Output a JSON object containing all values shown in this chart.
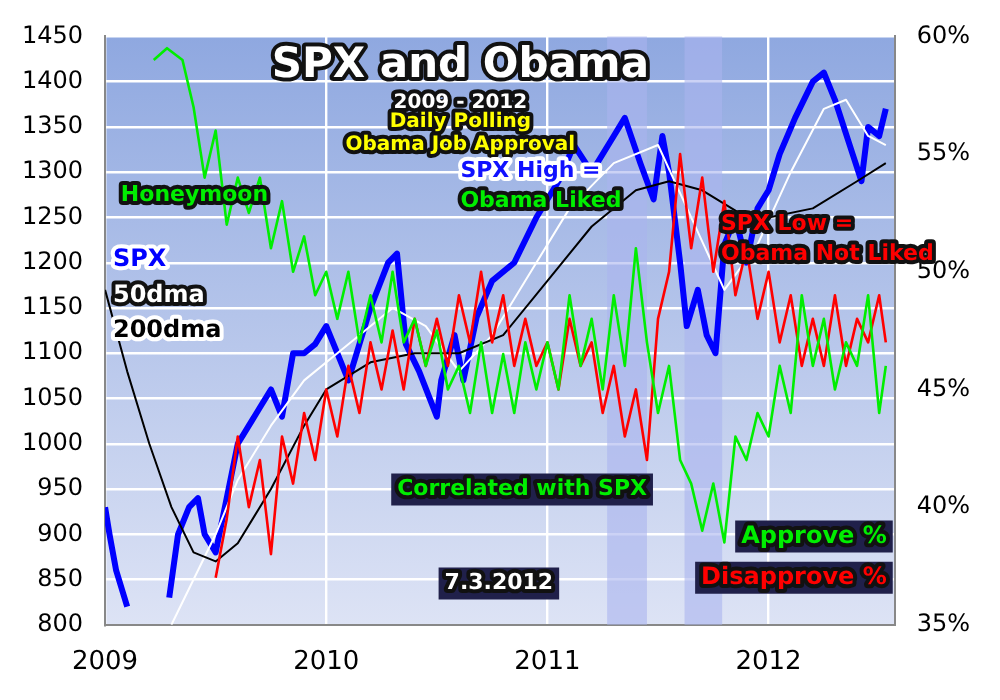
{
  "chart_data": {
    "type": "line",
    "title": "SPX and Obama",
    "subtitle": "2009 - 2012",
    "annotations": [
      "Daily Polling",
      "Obama Job Approval",
      "Honeymoon",
      "SPX High = Obama Liked",
      "SPX Low = Obama Not Liked",
      "Correlated with SPX",
      "7.3.2012"
    ],
    "xlim": [
      2009,
      2012.57
    ],
    "xticks": [
      2009,
      2010,
      2011,
      2012
    ],
    "ylim": [
      800,
      1450
    ],
    "yticks": [
      800,
      850,
      900,
      950,
      1000,
      1050,
      1100,
      1150,
      1200,
      1250,
      1300,
      1350,
      1400,
      1450
    ],
    "y2lim": [
      35,
      60
    ],
    "y2ticks": [
      {
        "value": 35,
        "label": "35%"
      },
      {
        "value": 40,
        "label": "40%"
      },
      {
        "value": 45,
        "label": "45%"
      },
      {
        "value": 50,
        "label": "50%"
      },
      {
        "value": 55,
        "label": "55%"
      },
      {
        "value": 60,
        "label": "60%"
      }
    ],
    "grid": true,
    "legend": false,
    "marker": "none",
    "bands": [
      {
        "axis": "x",
        "from": 2011.27,
        "to": 2011.45,
        "color": "#aab4ee"
      },
      {
        "axis": "x",
        "from": 2011.62,
        "to": 2011.79,
        "color": "#aab4ee"
      }
    ],
    "series": [
      {
        "name": "Approve %",
        "type": "line",
        "axis": "y2",
        "color": "#00ee00",
        "x": [
          2009.22,
          2009.28,
          2009.35,
          2009.4,
          2009.45,
          2009.5,
          2009.55,
          2009.6,
          2009.65,
          2009.7,
          2009.75,
          2009.8,
          2009.85,
          2009.9,
          2009.95,
          2010,
          2010.05,
          2010.1,
          2010.15,
          2010.2,
          2010.25,
          2010.3,
          2010.35,
          2010.4,
          2010.45,
          2010.5,
          2010.55,
          2010.6,
          2010.65,
          2010.7,
          2010.75,
          2010.8,
          2010.85,
          2010.9,
          2010.95,
          2011,
          2011.05,
          2011.1,
          2011.15,
          2011.2,
          2011.25,
          2011.3,
          2011.35,
          2011.4,
          2011.45,
          2011.5,
          2011.55,
          2011.6,
          2011.65,
          2011.7,
          2011.75,
          2011.8,
          2011.85,
          2011.9,
          2011.95,
          2012,
          2012.05,
          2012.1,
          2012.15,
          2012.2,
          2012.25,
          2012.3,
          2012.35,
          2012.4,
          2012.45,
          2012.5,
          2012.53
        ],
        "values": [
          59,
          59.5,
          59,
          57,
          54,
          56,
          52,
          54,
          52.5,
          54,
          51,
          53,
          50,
          51.5,
          49,
          50,
          48,
          50,
          47,
          49,
          47,
          50,
          47,
          48,
          46,
          47.5,
          45,
          46,
          44,
          47,
          44,
          46.5,
          44,
          47,
          45,
          47,
          45,
          49,
          46,
          48,
          45,
          49,
          46,
          51,
          47,
          44,
          46,
          42,
          41,
          39,
          41,
          38.5,
          43,
          42,
          44,
          43,
          46,
          44,
          49,
          46,
          48,
          45,
          47,
          46,
          49,
          44,
          46
        ]
      },
      {
        "name": "Disapprove %",
        "type": "line",
        "axis": "y2",
        "color": "#ff0000",
        "x": [
          2009.5,
          2009.55,
          2009.6,
          2009.65,
          2009.7,
          2009.75,
          2009.8,
          2009.85,
          2009.9,
          2009.95,
          2010,
          2010.05,
          2010.1,
          2010.15,
          2010.2,
          2010.25,
          2010.3,
          2010.35,
          2010.4,
          2010.45,
          2010.5,
          2010.55,
          2010.6,
          2010.65,
          2010.7,
          2010.75,
          2010.8,
          2010.85,
          2010.9,
          2010.95,
          2011,
          2011.05,
          2011.1,
          2011.15,
          2011.2,
          2011.25,
          2011.3,
          2011.35,
          2011.4,
          2011.45,
          2011.5,
          2011.55,
          2011.6,
          2011.65,
          2011.7,
          2011.75,
          2011.8,
          2011.85,
          2011.9,
          2011.95,
          2012,
          2012.05,
          2012.1,
          2012.15,
          2012.2,
          2012.25,
          2012.3,
          2012.35,
          2012.4,
          2012.45,
          2012.5,
          2012.53
        ],
        "values": [
          37,
          39.5,
          43,
          40,
          42,
          38,
          43,
          41,
          44,
          42,
          45,
          43,
          46,
          44,
          47,
          45,
          47.5,
          45,
          48,
          46,
          48,
          46,
          49,
          47,
          50,
          47,
          49,
          46,
          48,
          46,
          47,
          45,
          48,
          46,
          47,
          44,
          46,
          43,
          45,
          42,
          48,
          50,
          55,
          51,
          54,
          50,
          53,
          49,
          51,
          48,
          50,
          47,
          49,
          46,
          48,
          46,
          49,
          46,
          48,
          47,
          49,
          47
        ]
      },
      {
        "name": "200dma",
        "type": "line",
        "axis": "y",
        "color": "#000000",
        "x": [
          2009,
          2009.1,
          2009.2,
          2009.3,
          2009.4,
          2009.5,
          2009.6,
          2009.75,
          2009.9,
          2010,
          2010.2,
          2010.4,
          2010.6,
          2010.8,
          2011,
          2011.2,
          2011.4,
          2011.55,
          2011.7,
          2011.9,
          2012,
          2012.2,
          2012.4,
          2012.53
        ],
        "values": [
          1170,
          1080,
          1000,
          930,
          880,
          870,
          890,
          950,
          1020,
          1060,
          1090,
          1100,
          1100,
          1120,
          1180,
          1240,
          1280,
          1290,
          1280,
          1250,
          1250,
          1260,
          1290,
          1310
        ]
      },
      {
        "name": "50dma",
        "type": "line",
        "axis": "y",
        "color": "#ffffff",
        "x": [
          2009.3,
          2009.4,
          2009.5,
          2009.6,
          2009.75,
          2009.9,
          2010.1,
          2010.3,
          2010.45,
          2010.6,
          2010.75,
          2010.9,
          2011.1,
          2011.3,
          2011.5,
          2011.65,
          2011.8,
          2011.95,
          2012.1,
          2012.25,
          2012.35,
          2012.45,
          2012.53
        ],
        "values": [
          800,
          850,
          900,
          960,
          1020,
          1070,
          1110,
          1150,
          1130,
          1080,
          1120,
          1180,
          1260,
          1310,
          1330,
          1250,
          1170,
          1220,
          1300,
          1370,
          1380,
          1340,
          1330
        ]
      },
      {
        "name": "SPX",
        "type": "line",
        "axis": "y",
        "color": "#0000ff",
        "x": [
          2009,
          2009.02,
          2009.05,
          2009.1,
          2009.2,
          2009.29,
          2009.33,
          2009.38,
          2009.42,
          2009.45,
          2009.5,
          2009.55,
          2009.6,
          2009.65,
          2009.7,
          2009.75,
          2009.8,
          2009.85,
          2009.9,
          2009.95,
          2010,
          2010.05,
          2010.1,
          2010.15,
          2010.2,
          2010.28,
          2010.32,
          2010.36,
          2010.42,
          2010.5,
          2010.52,
          2010.58,
          2010.62,
          2010.68,
          2010.75,
          2010.85,
          2010.95,
          2011.05,
          2011.12,
          2011.2,
          2011.3,
          2011.35,
          2011.42,
          2011.48,
          2011.52,
          2011.55,
          2011.6,
          2011.63,
          2011.68,
          2011.72,
          2011.76,
          2011.8,
          2011.85,
          2011.9,
          2011.95,
          2012,
          2012.05,
          2012.12,
          2012.2,
          2012.25,
          2012.3,
          2012.38,
          2012.42,
          2012.45,
          2012.5,
          2012.53
        ],
        "values": [
          930,
          900,
          860,
          820,
          null,
          830,
          900,
          930,
          940,
          900,
          880,
          940,
          1000,
          1020,
          1040,
          1060,
          1030,
          1100,
          1100,
          1110,
          1130,
          1100,
          1070,
          1110,
          1150,
          1200,
          1210,
          1110,
          1080,
          1030,
          1070,
          1120,
          1070,
          1140,
          1180,
          1200,
          1250,
          1290,
          1330,
          1300,
          1340,
          1360,
          1310,
          1270,
          1340,
          1300,
          1200,
          1130,
          1170,
          1120,
          1100,
          1220,
          1250,
          1200,
          1260,
          1280,
          1320,
          1360,
          1400,
          1410,
          1380,
          1320,
          1290,
          1350,
          1340,
          1370
        ]
      }
    ]
  }
}
